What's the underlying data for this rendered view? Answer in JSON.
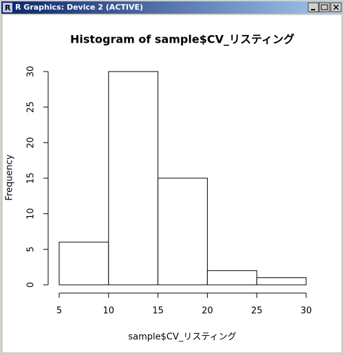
{
  "window": {
    "title": "R Graphics: Device 2 (ACTIVE)"
  },
  "chart_data": {
    "type": "histogram",
    "title": "Histogram of sample$CV_リスティング",
    "x_label": "sample$CV_リスティング",
    "y_label": "Frequency",
    "bins": [
      5,
      10,
      15,
      20,
      25,
      30
    ],
    "values": [
      6,
      30,
      15,
      2,
      1
    ],
    "color": "#ffffff",
    "edge_color": "#000000",
    "xlim": [
      5,
      30
    ],
    "xticks": [
      5,
      10,
      15,
      20,
      25,
      30
    ],
    "ylim": [
      0,
      30
    ],
    "yticks": [
      0,
      5,
      10,
      15,
      20,
      25,
      30
    ]
  }
}
